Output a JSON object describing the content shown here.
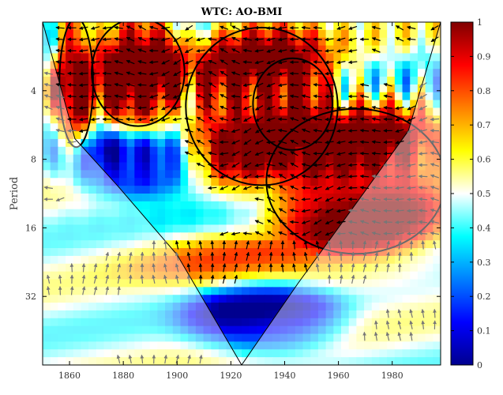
{
  "chart_data": {
    "type": "heatmap",
    "title": "WTC: AO-BMI",
    "xlabel": "",
    "ylabel": "Period",
    "x_range": [
      1850,
      1998
    ],
    "x_ticks": [
      1860,
      1880,
      1900,
      1920,
      1940,
      1960,
      1980
    ],
    "y_scale": "log2",
    "y_range": [
      2,
      64
    ],
    "y_ticks": [
      4,
      8,
      16,
      32
    ],
    "colorbar": {
      "range": [
        0,
        1
      ],
      "ticks": [
        0,
        0.1,
        0.2,
        0.3,
        0.4,
        0.5,
        0.6,
        0.7,
        0.8,
        0.9,
        1
      ],
      "colormap": "jet"
    },
    "cone_of_influence": [
      [
        1850,
        2
      ],
      [
        1862,
        6.5
      ],
      [
        1878,
        10.5
      ],
      [
        1900,
        21
      ],
      [
        1924,
        64
      ],
      [
        1945,
        28
      ],
      [
        1970,
        11
      ],
      [
        1986,
        6
      ],
      [
        1998,
        2
      ]
    ],
    "high_coherence_regions": [
      {
        "name": "",
        "x_range": [
          1858,
          1867
        ],
        "period_range": [
          2,
          6.8
        ],
        "level": 0.9
      },
      {
        "name": "",
        "x_range": [
          1870,
          1901
        ],
        "period_range": [
          2,
          5.5
        ],
        "level": 0.95
      },
      {
        "name": "",
        "x_range": [
          1905,
          1958
        ],
        "period_range": [
          2.2,
          10
        ],
        "level": 0.92
      },
      {
        "name": "",
        "x_range": [
          1930,
          1956
        ],
        "period_range": [
          3,
          7
        ],
        "level": 0.97
      },
      {
        "name": "",
        "x_range": [
          1935,
          1998
        ],
        "period_range": [
          5,
          20
        ],
        "level": 0.93
      },
      {
        "name": "",
        "x_range": [
          1884,
          1998
        ],
        "period_range": [
          20,
          27
        ],
        "level": 0.65
      }
    ],
    "low_coherence_regions": [
      {
        "name": "",
        "x_range": [
          1860,
          1905
        ],
        "period_range": [
          7,
          10
        ],
        "level": 0.08
      },
      {
        "name": "",
        "x_range": [
          1905,
          1960
        ],
        "period_range": [
          32,
          50
        ],
        "level": 0.12
      }
    ],
    "colors": {
      "coi_overlay": "#ffffff",
      "contour": "#000000",
      "arrow_inside": "#000000",
      "arrow_outside": "#777777"
    }
  }
}
